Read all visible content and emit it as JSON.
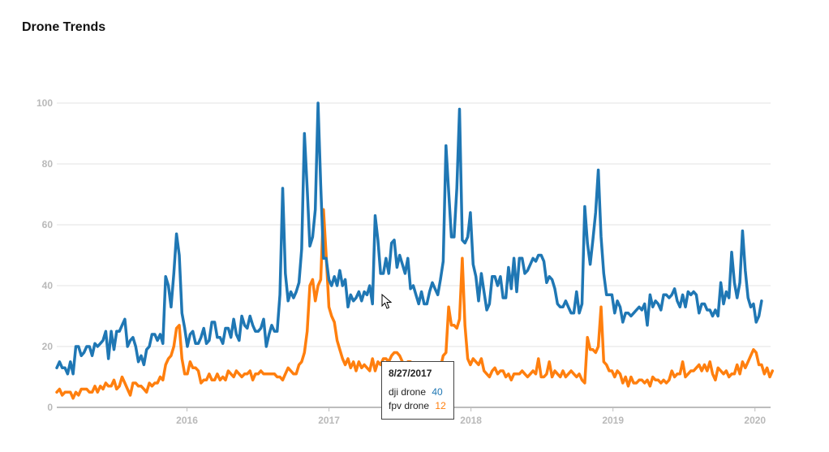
{
  "title": "Drone Trends",
  "chart_data": {
    "type": "line",
    "x_start": 2015.083,
    "x_step_years": 0.019165,
    "xlim": [
      2015.083,
      2020.11
    ],
    "ylim": [
      0,
      100
    ],
    "y_ticks": [
      0,
      20,
      40,
      60,
      80,
      100
    ],
    "x_ticks": [
      {
        "value": 2016,
        "label": "2016"
      },
      {
        "value": 2017,
        "label": "2017"
      },
      {
        "value": 2018,
        "label": "2018"
      },
      {
        "value": 2019,
        "label": "2019"
      },
      {
        "value": 2020,
        "label": "2020"
      }
    ],
    "grid": true,
    "series": [
      {
        "name": "dji drone",
        "color": "#1f77b4",
        "values": [
          13,
          15,
          13,
          13,
          11,
          15,
          11,
          20,
          20,
          17,
          18,
          20,
          20,
          17,
          21,
          20,
          21,
          22,
          25,
          16,
          25,
          19,
          25,
          25,
          27,
          29,
          20,
          22,
          23,
          20,
          15,
          17,
          14,
          19,
          20,
          24,
          24,
          22,
          24,
          21,
          43,
          40,
          33,
          44,
          57,
          50,
          31,
          26,
          20,
          24,
          25,
          21,
          21,
          23,
          26,
          21,
          22,
          28,
          28,
          23,
          23,
          21,
          26,
          26,
          23,
          29,
          24,
          22,
          30,
          27,
          26,
          30,
          27,
          25,
          25,
          26,
          29,
          20,
          24,
          27,
          25,
          25,
          37,
          72,
          44,
          35,
          38,
          36,
          38,
          41,
          52,
          90,
          72,
          53,
          56,
          65,
          100,
          73,
          49,
          49,
          42,
          40,
          43,
          40,
          45,
          40,
          42,
          33,
          37,
          35,
          36,
          38,
          35,
          38,
          37,
          40,
          34,
          63,
          55,
          44,
          44,
          49,
          44,
          54,
          55,
          46,
          50,
          47,
          44,
          49,
          39,
          40,
          37,
          34,
          38,
          34,
          34,
          38,
          41,
          39,
          37,
          42,
          48,
          86,
          71,
          56,
          56,
          72,
          98,
          55,
          54,
          56,
          64,
          47,
          43,
          35,
          44,
          38,
          32,
          34,
          43,
          43,
          40,
          43,
          36,
          36,
          46,
          39,
          49,
          38,
          49,
          49,
          44,
          45,
          47,
          49,
          48,
          50,
          50,
          48,
          41,
          43,
          42,
          39,
          34,
          33,
          33,
          35,
          33,
          31,
          31,
          38,
          31,
          34,
          66,
          54,
          47,
          55,
          64,
          78,
          56,
          44,
          37,
          37,
          37,
          31,
          35,
          33,
          28,
          31,
          31,
          30,
          31,
          32,
          33,
          32,
          34,
          27,
          37,
          33,
          35,
          34,
          32,
          37,
          37,
          36,
          37,
          39,
          35,
          33,
          37,
          33,
          38,
          37,
          38,
          37,
          31,
          34,
          34,
          32,
          32,
          30,
          32,
          30,
          41,
          34,
          38,
          36,
          51,
          41,
          36,
          41,
          58,
          45,
          36,
          33,
          34,
          28,
          30,
          35
        ]
      },
      {
        "name": "fpv drone",
        "color": "#ff7f0e",
        "values": [
          5,
          6,
          4,
          5,
          5,
          5,
          3,
          5,
          4,
          6,
          6,
          6,
          5,
          5,
          7,
          5,
          7,
          6,
          8,
          7,
          7,
          9,
          6,
          7,
          10,
          8,
          6,
          4,
          8,
          8,
          7,
          7,
          6,
          5,
          8,
          7,
          8,
          8,
          10,
          9,
          14,
          16,
          17,
          20,
          26,
          27,
          16,
          11,
          11,
          15,
          13,
          13,
          12,
          8,
          9,
          9,
          11,
          9,
          9,
          11,
          9,
          10,
          9,
          12,
          11,
          10,
          12,
          11,
          10,
          11,
          11,
          12,
          9,
          11,
          11,
          12,
          11,
          11,
          11,
          11,
          11,
          10,
          10,
          9,
          11,
          13,
          12,
          11,
          11,
          14,
          15,
          18,
          25,
          40,
          42,
          35,
          40,
          42,
          65,
          50,
          33,
          30,
          28,
          22,
          19,
          16,
          14,
          16,
          13,
          15,
          12,
          15,
          13,
          14,
          13,
          12,
          16,
          12,
          15,
          14,
          16,
          16,
          15,
          17,
          18,
          18,
          17,
          15,
          14,
          15,
          15,
          13,
          13,
          12,
          12,
          11,
          12,
          11,
          12,
          12,
          13,
          13,
          17,
          18,
          33,
          27,
          27,
          26,
          29,
          49,
          27,
          16,
          14,
          16,
          15,
          14,
          16,
          12,
          11,
          10,
          12,
          13,
          11,
          12,
          12,
          10,
          11,
          9,
          11,
          11,
          11,
          12,
          11,
          10,
          11,
          12,
          11,
          16,
          10,
          10,
          11,
          15,
          10,
          12,
          11,
          10,
          12,
          10,
          11,
          12,
          11,
          10,
          11,
          9,
          8,
          23,
          19,
          19,
          18,
          20,
          33,
          15,
          14,
          12,
          12,
          10,
          12,
          11,
          8,
          10,
          7,
          10,
          8,
          8,
          9,
          9,
          8,
          9,
          7,
          10,
          9,
          9,
          8,
          9,
          8,
          9,
          12,
          10,
          11,
          11,
          15,
          10,
          11,
          12,
          12,
          13,
          14,
          12,
          14,
          12,
          15,
          11,
          9,
          13,
          12,
          11,
          12,
          10,
          11,
          11,
          14,
          11,
          15,
          13,
          15,
          17,
          19,
          18,
          14,
          14,
          11,
          13,
          10,
          12
        ]
      }
    ],
    "tooltip": {
      "date": "8/27/2017",
      "rows": [
        {
          "name": "dji drone",
          "value": "40",
          "color": "#1f77b4"
        },
        {
          "name": "fpv drone",
          "value": "12",
          "color": "#ff7f0e"
        }
      ]
    }
  }
}
